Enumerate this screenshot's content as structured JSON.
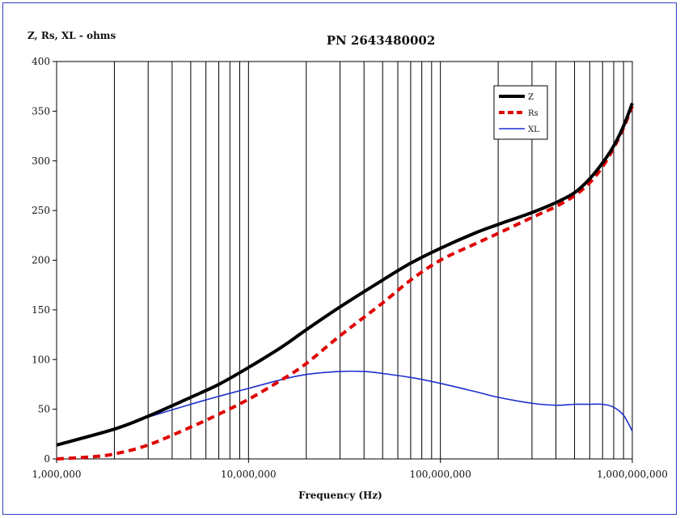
{
  "chart_data": {
    "type": "line",
    "title": "PN 2643480002",
    "ylabel": "Z, Rs, XL - ohms",
    "xlabel": "Frequency (Hz)",
    "x_scale": "log",
    "xlim": [
      1000000,
      1000000000
    ],
    "ylim": [
      0,
      400
    ],
    "grid": "vertical",
    "legend_position": "top-right",
    "x_tick_values": [
      1000000,
      10000000,
      100000000,
      1000000000
    ],
    "x_tick_labels": [
      "1,000,000",
      "10,000,000",
      "100,000,000",
      "1,000,000,000"
    ],
    "y_ticks": [
      0,
      50,
      100,
      150,
      200,
      250,
      300,
      350,
      400
    ],
    "series": [
      {
        "name": "Z",
        "color": "#000000",
        "style": "solid-thick",
        "x": [
          1000000,
          2000000,
          3000000,
          5000000,
          7000000,
          10000000,
          15000000,
          20000000,
          30000000,
          50000000,
          70000000,
          100000000,
          150000000,
          200000000,
          300000000,
          400000000,
          500000000,
          600000000,
          700000000,
          800000000,
          900000000,
          1000000000
        ],
        "values": [
          14,
          30,
          43,
          62,
          75,
          92,
          113,
          130,
          153,
          180,
          197,
          212,
          227,
          236,
          248,
          258,
          268,
          282,
          298,
          315,
          335,
          358
        ]
      },
      {
        "name": "Rs",
        "color": "#e00000",
        "style": "dashed",
        "x": [
          1000000,
          1500000,
          2000000,
          3000000,
          5000000,
          7000000,
          10000000,
          15000000,
          20000000,
          30000000,
          50000000,
          70000000,
          100000000,
          150000000,
          200000000,
          300000000,
          400000000,
          500000000,
          600000000,
          700000000,
          800000000,
          900000000,
          1000000000
        ],
        "values": [
          0,
          2,
          5,
          14,
          32,
          45,
          60,
          80,
          96,
          124,
          157,
          180,
          200,
          216,
          227,
          243,
          254,
          265,
          278,
          294,
          313,
          333,
          355
        ]
      },
      {
        "name": "XL",
        "color": "#1f2fcf",
        "style": "solid-thin",
        "x": [
          1000000,
          2000000,
          3000000,
          5000000,
          7000000,
          10000000,
          15000000,
          20000000,
          30000000,
          40000000,
          50000000,
          70000000,
          100000000,
          150000000,
          200000000,
          300000000,
          400000000,
          500000000,
          600000000,
          700000000,
          800000000,
          900000000,
          1000000000
        ],
        "values": [
          14,
          30,
          42,
          55,
          63,
          71,
          80,
          85,
          88,
          88,
          86,
          82,
          76,
          68,
          62,
          56,
          54,
          55,
          55,
          55,
          52,
          44,
          28
        ]
      }
    ]
  }
}
